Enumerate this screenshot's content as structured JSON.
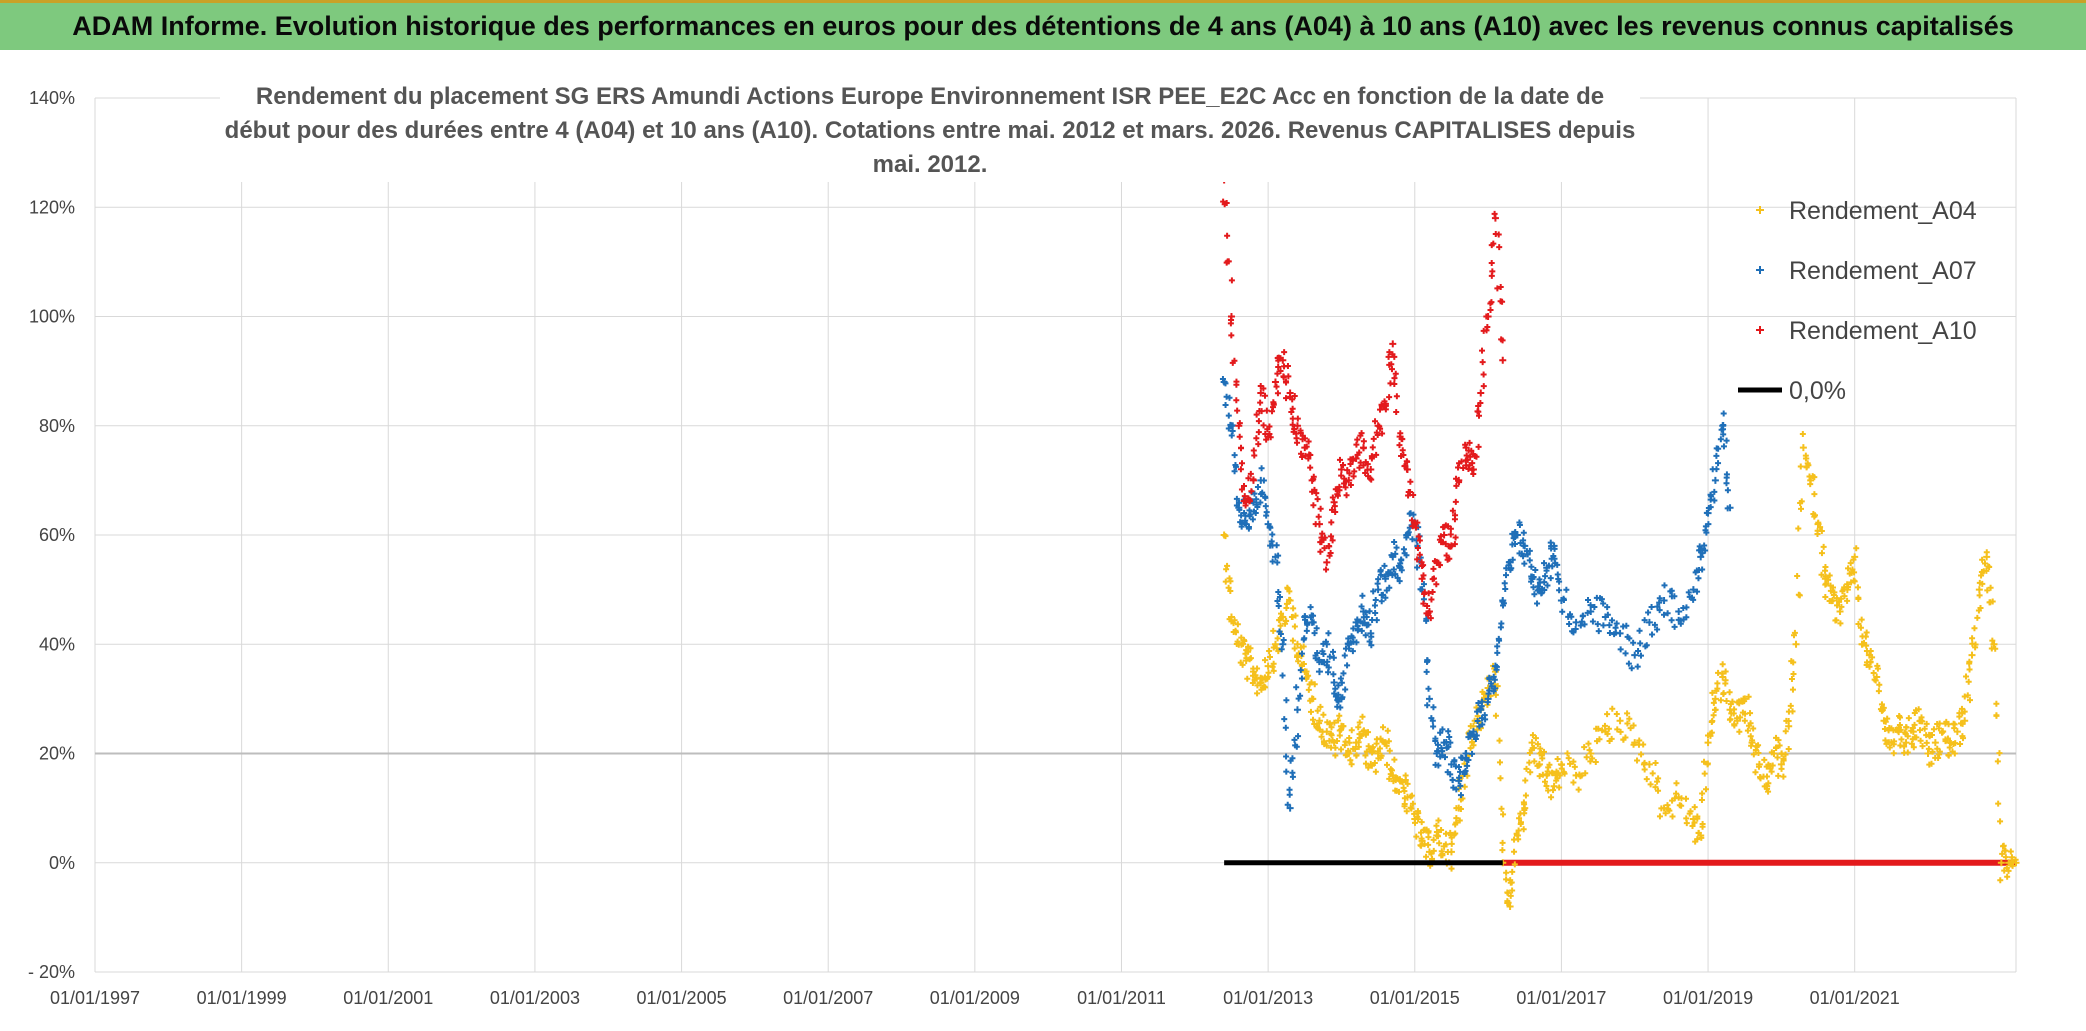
{
  "banner": {
    "title": "ADAM Informe. Evolution historique des performances en euros pour des détentions de 4 ans (A04) à 10 ans (A10) avec les revenus connus capitalisés"
  },
  "chart_data": {
    "type": "scatter",
    "title": "Rendement du placement SG ERS Amundi Actions Europe Environnement ISR PEE_E2C Acc en fonction de la date de début pour des durées entre 4 (A04) et 10 ans (A10). Cotations entre mai. 2012 et mars. 2026. Revenus CAPITALISES depuis mai. 2012.",
    "xlabel": "",
    "ylabel": "",
    "xlim": [
      1997.0,
      2023.2
    ],
    "ylim": [
      -20,
      140
    ],
    "y_ticks": [
      -20,
      0,
      20,
      40,
      60,
      80,
      100,
      120,
      140
    ],
    "y_tick_labels": [
      "- 20%",
      "0%",
      "20%",
      "40%",
      "60%",
      "80%",
      "100%",
      "120%",
      "140%"
    ],
    "x_ticks": [
      1997,
      1999,
      2001,
      2003,
      2005,
      2007,
      2009,
      2011,
      2013,
      2015,
      2017,
      2019,
      2021
    ],
    "x_tick_labels": [
      "01/01/1997",
      "01/01/1999",
      "01/01/2001",
      "01/01/2003",
      "01/01/2005",
      "01/01/2007",
      "01/01/2009",
      "01/01/2011",
      "01/01/2013",
      "01/01/2015",
      "01/01/2017",
      "01/01/2019",
      "01/01/2021"
    ],
    "legend_position": "top-right",
    "series": [
      {
        "name": "Rendement_A04",
        "color": "#f5c01c",
        "marker": "plus",
        "x": [
          2012.4,
          2012.5,
          2012.6,
          2012.7,
          2012.8,
          2012.9,
          2013.0,
          2013.1,
          2013.2,
          2013.3,
          2013.4,
          2013.5,
          2013.6,
          2013.7,
          2013.8,
          2013.9,
          2014.0,
          2014.1,
          2014.2,
          2014.3,
          2014.4,
          2014.5,
          2014.6,
          2014.7,
          2014.8,
          2014.9,
          2015.0,
          2015.1,
          2015.2,
          2015.3,
          2015.4,
          2015.5,
          2015.6,
          2015.7,
          2015.8,
          2015.9,
          2016.0,
          2016.1,
          2016.2,
          2016.3,
          2016.4,
          2016.5,
          2016.6,
          2016.7,
          2016.8,
          2016.9,
          2017.0,
          2017.2,
          2017.4,
          2017.6,
          2017.8,
          2018.0,
          2018.2,
          2018.4,
          2018.6,
          2018.8,
          2018.9,
          2019.0,
          2019.1,
          2019.2,
          2019.3,
          2019.4,
          2019.5,
          2019.6,
          2019.7,
          2019.8,
          2019.9,
          2020.0,
          2020.1,
          2020.2,
          2020.3,
          2020.4,
          2020.5,
          2020.6,
          2020.7,
          2020.8,
          2020.9,
          2021.0,
          2021.1,
          2021.2,
          2021.3,
          2021.4,
          2021.5,
          2021.6,
          2021.7,
          2021.8,
          2021.9,
          2022.0,
          2022.1,
          2022.2,
          2022.3,
          2022.4,
          2022.5,
          2022.6,
          2022.7,
          2022.8,
          2022.9,
          2023.0,
          2023.1,
          2023.2
        ],
        "values": [
          60,
          45,
          40,
          37,
          35,
          33,
          36,
          40,
          45,
          48,
          40,
          35,
          30,
          26,
          24,
          22,
          25,
          20,
          22,
          24,
          18,
          20,
          22,
          16,
          15,
          12,
          8,
          4,
          2,
          5,
          3,
          2,
          10,
          20,
          25,
          28,
          32,
          35,
          0,
          -8,
          5,
          10,
          22,
          18,
          16,
          14,
          18,
          16,
          20,
          24,
          26,
          22,
          18,
          10,
          12,
          8,
          5,
          22,
          30,
          34,
          28,
          26,
          30,
          22,
          18,
          14,
          20,
          18,
          25,
          40,
          76,
          70,
          62,
          52,
          48,
          46,
          50,
          56,
          40,
          38,
          34,
          26,
          22,
          24,
          22,
          24,
          26,
          20,
          22,
          24,
          22,
          24,
          26,
          38,
          50,
          56,
          40,
          0,
          0,
          0
        ]
      },
      {
        "name": "Rendement_A07",
        "color": "#1f6fb8",
        "marker": "plus",
        "x": [
          2012.4,
          2012.5,
          2012.6,
          2012.7,
          2012.8,
          2012.9,
          2013.0,
          2013.1,
          2013.2,
          2013.3,
          2013.4,
          2013.5,
          2013.6,
          2013.7,
          2013.8,
          2013.9,
          2014.0,
          2014.1,
          2014.2,
          2014.3,
          2014.4,
          2014.5,
          2014.6,
          2014.7,
          2014.8,
          2014.9,
          2015.0,
          2015.1,
          2015.2,
          2015.3,
          2015.4,
          2015.5,
          2015.6,
          2015.7,
          2015.8,
          2015.9,
          2016.0,
          2016.1,
          2016.2,
          2016.3,
          2016.4,
          2016.5,
          2016.6,
          2016.7,
          2016.8,
          2016.9,
          2017.0,
          2017.2,
          2017.4,
          2017.6,
          2017.8,
          2018.0,
          2018.2,
          2018.4,
          2018.6,
          2018.8,
          2018.9,
          2019.0,
          2019.1,
          2019.2,
          2019.3
        ],
        "values": [
          88,
          80,
          65,
          62,
          66,
          70,
          62,
          56,
          40,
          10,
          28,
          45,
          44,
          35,
          40,
          33,
          30,
          40,
          44,
          46,
          42,
          50,
          52,
          56,
          54,
          60,
          62,
          50,
          30,
          20,
          22,
          18,
          15,
          20,
          24,
          28,
          30,
          36,
          48,
          55,
          60,
          58,
          52,
          50,
          54,
          58,
          48,
          44,
          46,
          45,
          42,
          38,
          44,
          48,
          46,
          50,
          56,
          64,
          70,
          80,
          65
        ]
      },
      {
        "name": "Rendement_A10",
        "color": "#e31a1c",
        "marker": "plus",
        "x": [
          2012.4,
          2012.5,
          2012.6,
          2012.7,
          2012.8,
          2012.9,
          2013.0,
          2013.1,
          2013.2,
          2013.3,
          2013.4,
          2013.5,
          2013.6,
          2013.7,
          2013.8,
          2013.9,
          2014.0,
          2014.1,
          2014.2,
          2014.3,
          2014.4,
          2014.5,
          2014.6,
          2014.7,
          2014.8,
          2014.9,
          2015.0,
          2015.1,
          2015.2,
          2015.3,
          2015.4,
          2015.5,
          2015.6,
          2015.7,
          2015.8,
          2015.9,
          2016.0,
          2016.1,
          2016.2
        ],
        "values": [
          125,
          100,
          80,
          66,
          70,
          86,
          78,
          88,
          92,
          86,
          80,
          76,
          70,
          62,
          55,
          66,
          72,
          70,
          74,
          76,
          72,
          80,
          84,
          95,
          78,
          72,
          62,
          52,
          46,
          55,
          60,
          58,
          70,
          76,
          72,
          86,
          100,
          118,
          92
        ]
      },
      {
        "name": "0,0%",
        "color": "#000000",
        "marker": "line",
        "x": [
          2012.4,
          2016.2
        ],
        "values": [
          0,
          0
        ]
      }
    ],
    "zero_return_band": {
      "color": "#e31a1c",
      "x_start": 2016.2,
      "x_end": 2023.2,
      "value": 0
    }
  }
}
